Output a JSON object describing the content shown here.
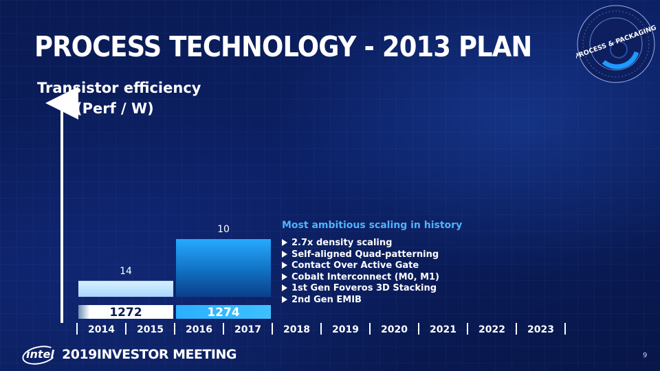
{
  "slide": {
    "title": "PROCESS TECHNOLOGY - 2013 PLAN",
    "badge_text": "PROCESS & PACKAGING",
    "page_number": "9"
  },
  "footer": {
    "logo": "intel",
    "year": "2019",
    "event": "INVESTOR MEETING"
  },
  "highlights": {
    "heading": "Most ambitious scaling in history",
    "bullets": [
      "2.7x density scaling",
      "Self-aligned Quad-patterning",
      "Contact Over Active Gate",
      "Cobalt Interconnect (M0, M1)",
      "1st Gen Foveros 3D Stacking",
      "2nd Gen EMIB"
    ]
  },
  "colors": {
    "node_14": "#bfe3ff",
    "node_10": "#1fa6ff",
    "heading": "#4fb3ff",
    "background": "#0b1f63"
  },
  "chart_data": {
    "type": "bar",
    "ylabel_line1": "Transistor efficiency",
    "ylabel_line2": "(Perf / W)",
    "years": [
      "2014",
      "2015",
      "2016",
      "2017",
      "2018",
      "2019",
      "2020",
      "2021",
      "2022",
      "2023"
    ],
    "series": [
      {
        "name": "14",
        "process": "1272",
        "start_year": "2014",
        "end_year": "2015",
        "efficiency_level": 0.2
      },
      {
        "name": "10",
        "process": "1274",
        "start_year": "2016",
        "end_year": "2017",
        "efficiency_level": 1.0
      }
    ]
  }
}
